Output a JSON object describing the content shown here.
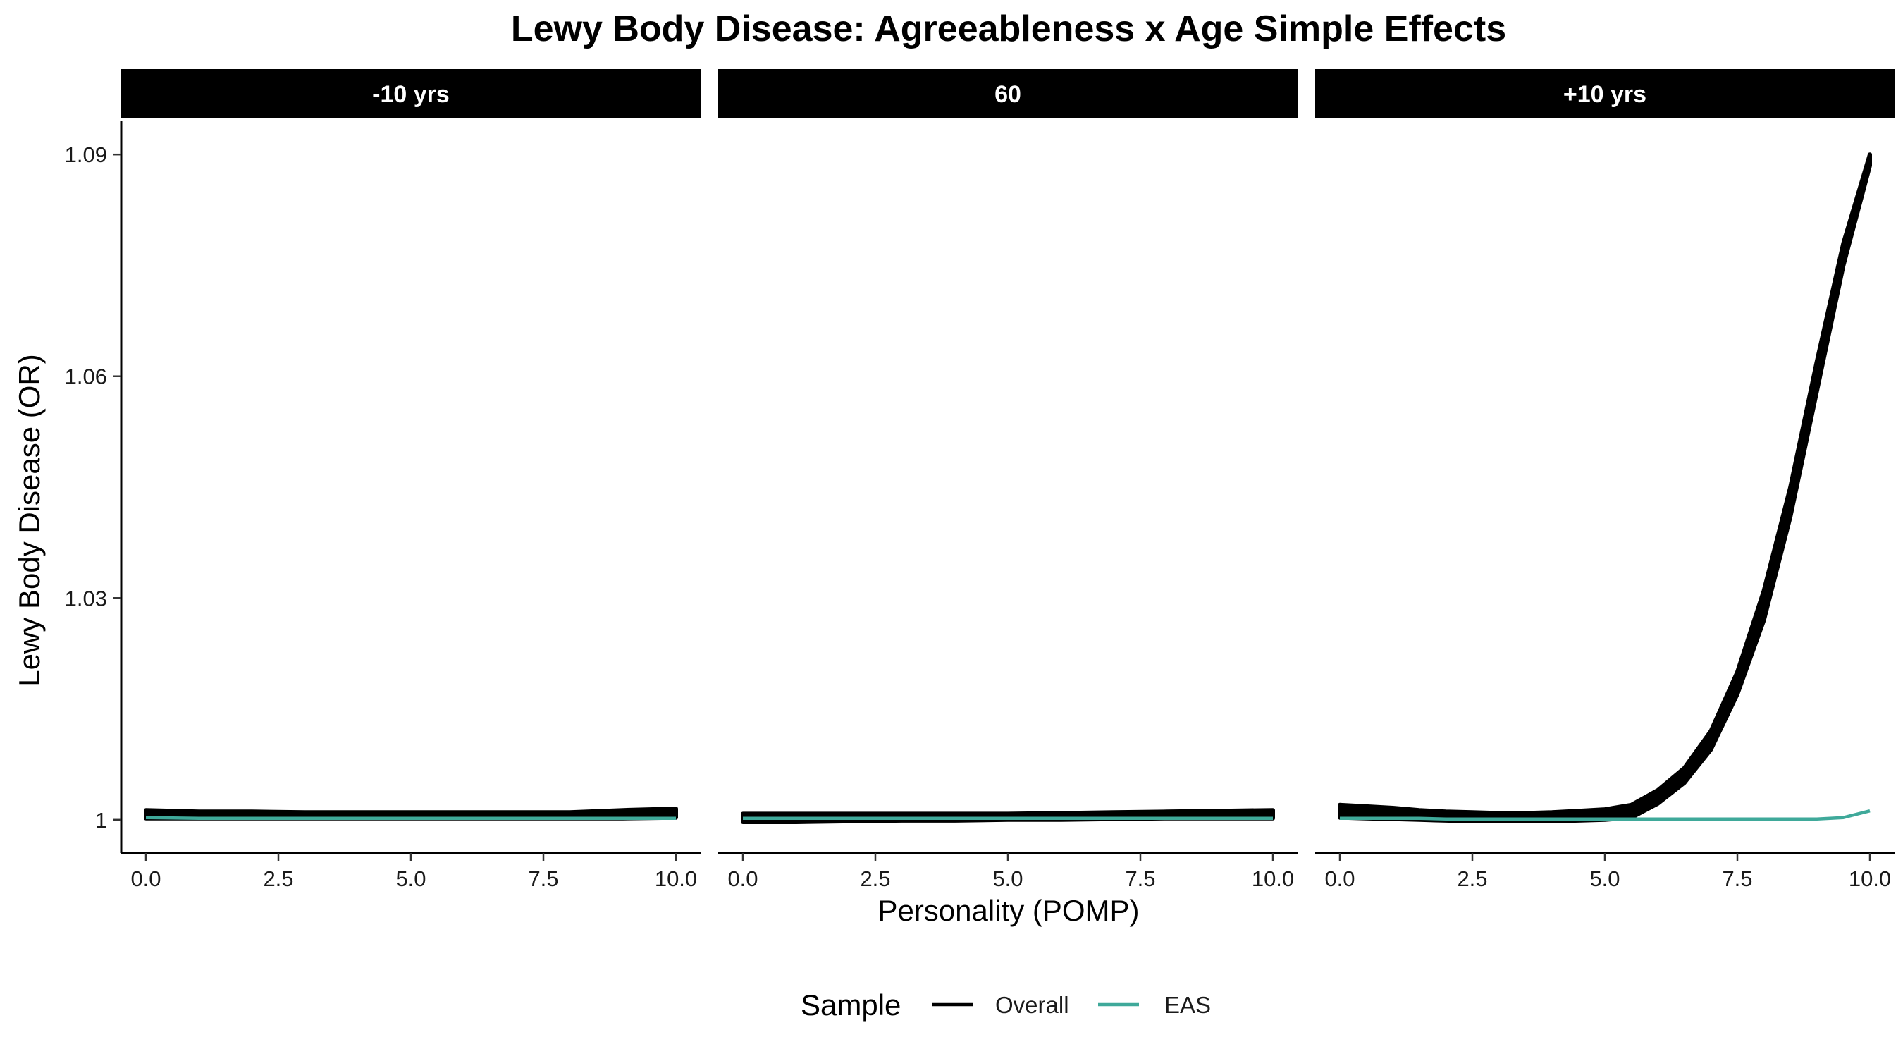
{
  "chart_data": {
    "type": "line",
    "title": "Lewy Body Disease: Agreeableness x Age Simple Effects",
    "xlabel": "Personality (POMP)",
    "ylabel": "Lewy Body Disease (OR)",
    "xlim": [
      0,
      10
    ],
    "ylim": [
      0.9955,
      1.0945
    ],
    "x_ticks": [
      "0.0",
      "2.5",
      "5.0",
      "7.5",
      "10.0"
    ],
    "y_ticks": [
      "1",
      "1.03",
      "1.06",
      "1.09"
    ],
    "y_tick_values": [
      1.0,
      1.03,
      1.06,
      1.09
    ],
    "grid": false,
    "legend": {
      "title": "Sample",
      "position": "bottom",
      "entries": [
        "Overall",
        "EAS"
      ]
    },
    "panels": [
      {
        "label": "-10 yrs",
        "x": [
          0,
          1,
          2,
          3,
          4,
          5,
          6,
          7,
          8,
          9,
          10
        ],
        "series": [
          {
            "name": "Overall",
            "color": "#000000",
            "band": true,
            "upper": [
              1.0013,
              1.0011,
              1.0011,
              1.001,
              1.001,
              1.001,
              1.001,
              1.001,
              1.001,
              1.0013,
              1.0015
            ],
            "lower": [
              1.0002,
              1.0002,
              1.0002,
              1.0002,
              1.0002,
              1.0002,
              1.0002,
              1.0002,
              1.0002,
              1.0002,
              1.0003
            ]
          },
          {
            "name": "EAS",
            "color": "#3fa99a",
            "band": false,
            "values": [
              1.0003,
              1.0002,
              1.0002,
              1.0002,
              1.0002,
              1.0002,
              1.0002,
              1.0002,
              1.0002,
              1.0002,
              1.0002
            ]
          }
        ]
      },
      {
        "label": "60",
        "x": [
          0,
          1,
          2,
          3,
          4,
          5,
          6,
          7,
          8,
          9,
          10
        ],
        "series": [
          {
            "name": "Overall",
            "color": "#000000",
            "band": true,
            "upper": [
              1.0008,
              1.0008,
              1.0008,
              1.0008,
              1.0008,
              1.0008,
              1.0009,
              1.001,
              1.0011,
              1.0012,
              1.0013
            ],
            "lower": [
              0.9997,
              0.9997,
              0.9998,
              0.9999,
              0.9999,
              1.0,
              1.0,
              1.0001,
              1.0002,
              1.0002,
              1.0002
            ]
          },
          {
            "name": "EAS",
            "color": "#3fa99a",
            "band": false,
            "values": [
              1.0002,
              1.0002,
              1.0002,
              1.0002,
              1.0002,
              1.0002,
              1.0002,
              1.0002,
              1.0002,
              1.0002,
              1.0002
            ]
          }
        ]
      },
      {
        "label": "+10 yrs",
        "x": [
          0,
          0.5,
          1,
          1.5,
          2,
          2.5,
          3,
          3.5,
          4,
          4.5,
          5,
          5.5,
          6,
          6.5,
          7,
          7.5,
          8,
          8.5,
          9,
          9.5,
          10
        ],
        "series": [
          {
            "name": "Overall",
            "color": "#000000",
            "band": true,
            "upper": [
              1.002,
              1.0018,
              1.0016,
              1.0013,
              1.0011,
              1.001,
              1.0009,
              1.0009,
              1.001,
              1.0012,
              1.0014,
              1.002,
              1.004,
              1.007,
              1.012,
              1.02,
              1.031,
              1.045,
              1.062,
              1.078,
              1.09
            ],
            "lower": [
              1.0003,
              1.0002,
              1.0001,
              1.0,
              0.9999,
              0.9998,
              0.9998,
              0.9998,
              0.9998,
              0.9999,
              1.0,
              1.0003,
              1.0022,
              1.005,
              1.0095,
              1.017,
              1.027,
              1.041,
              1.058,
              1.075,
              1.0885
            ]
          },
          {
            "name": "EAS",
            "color": "#3fa99a",
            "band": false,
            "values": [
              1.0002,
              1.0002,
              1.0002,
              1.0002,
              1.0001,
              1.0001,
              1.0001,
              1.0001,
              1.0001,
              1.0001,
              1.0001,
              1.0001,
              1.0001,
              1.0001,
              1.0001,
              1.0001,
              1.0001,
              1.0001,
              1.0001,
              1.0003,
              1.0012
            ]
          }
        ]
      }
    ]
  }
}
